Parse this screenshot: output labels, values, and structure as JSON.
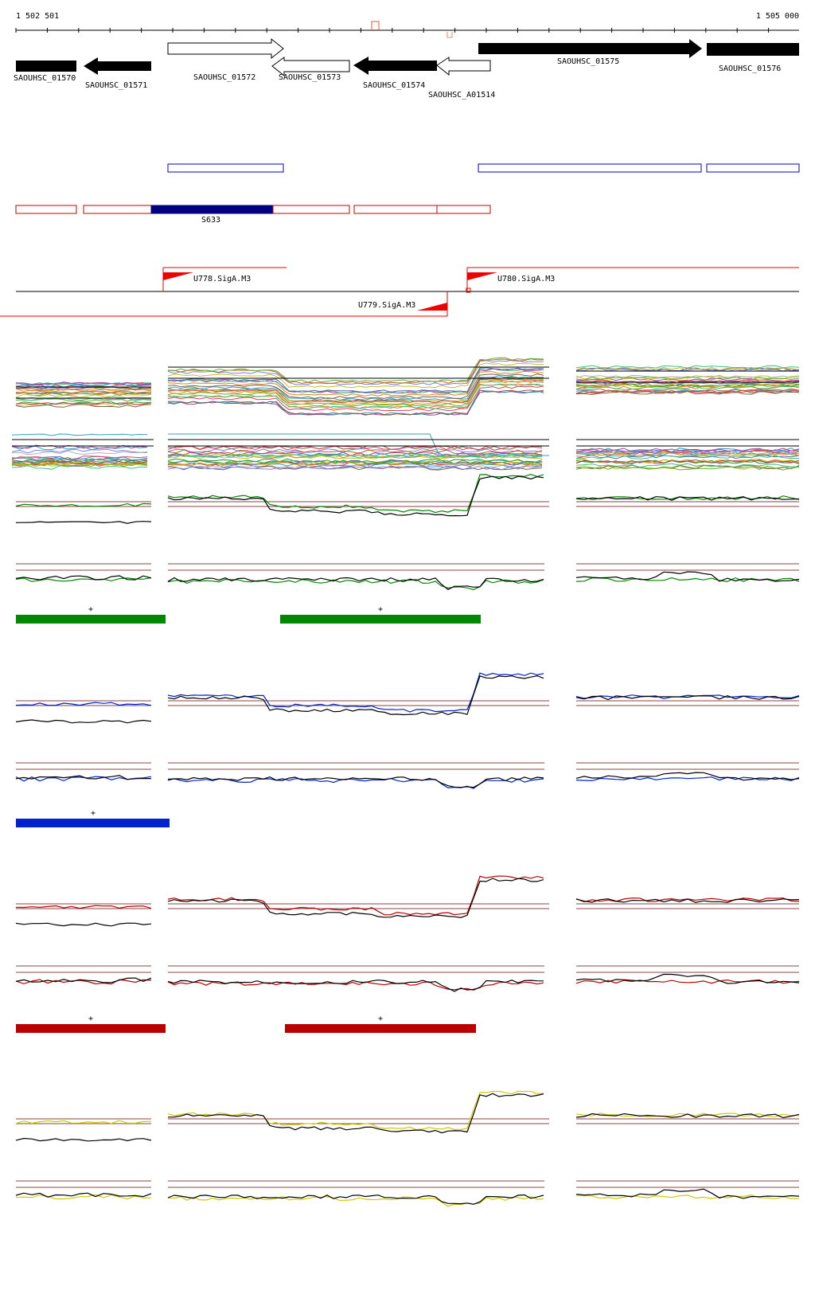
{
  "ruler": {
    "start_label": "1 502 501",
    "end_label": "1 505 000",
    "color": "#000000"
  },
  "genes": [
    {
      "id": "SAOUHSC_01570",
      "label": "SAOUHSC_01570",
      "strand": "+",
      "filled": true
    },
    {
      "id": "SAOUHSC_01571",
      "label": "SAOUHSC_01571",
      "strand": "-",
      "filled": true
    },
    {
      "id": "SAOUHSC_01572",
      "label": "SAOUHSC_01572",
      "strand": "+",
      "filled": false
    },
    {
      "id": "SAOUHSC_01573",
      "label": "SAOUHSC_01573",
      "strand": "-",
      "filled": false
    },
    {
      "id": "SAOUHSC_01574",
      "label": "SAOUHSC_01574",
      "strand": "-",
      "filled": true
    },
    {
      "id": "SAOUHSC_A01514",
      "label": "SAOUHSC_A01514",
      "strand": "-",
      "filled": false
    },
    {
      "id": "SAOUHSC_01575",
      "label": "SAOUHSC_01575",
      "strand": "+",
      "filled": true
    },
    {
      "id": "SAOUHSC_01576",
      "label": "SAOUHSC_01576",
      "strand": "+",
      "filled": true
    }
  ],
  "segments": {
    "label": "S633",
    "blue_color": "#0000cc",
    "red_color": "#cc0000",
    "fill_color": "#000080"
  },
  "promoters": [
    {
      "label": "U778.SigA.M3",
      "strand": "+"
    },
    {
      "label": "U779.SigA.M3",
      "strand": "-"
    },
    {
      "label": "U780.SigA.M3",
      "strand": "+"
    }
  ],
  "condition_groups": [
    {
      "name": "green",
      "color": "#008800",
      "mark": "+",
      "bars": 2
    },
    {
      "name": "blue",
      "color": "#0022cc",
      "mark": "+",
      "bars": 1
    },
    {
      "name": "red",
      "color": "#bb0000",
      "mark": "+",
      "bars": 2
    },
    {
      "name": "yellow",
      "color": "#cccc00",
      "mark": "",
      "bars": 0
    }
  ],
  "colors": {
    "threshold_line": "#884444",
    "promoter": "#ee0000"
  }
}
